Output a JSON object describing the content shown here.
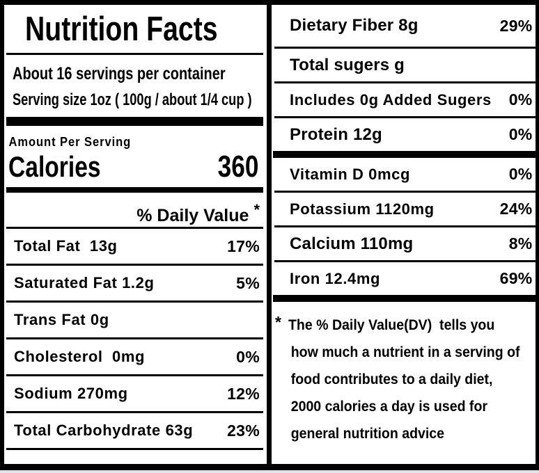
{
  "label": {
    "title": "Nutrition Facts",
    "servings_per_container": "About 16 servings per container",
    "serving_size": "Serving size 1oz ( 100g / about 1/4 cup )",
    "amount_per_serving": "Amount Per Serving",
    "calories_label": "Calories",
    "calories_value": "360",
    "daily_value_header": "% Daily Value",
    "daily_value_asterisk": "*",
    "left_rows": [
      {
        "label": "Total Fat  13g",
        "pct": "17%"
      },
      {
        "label": "Saturated Fat 1.2g",
        "pct": "5%"
      },
      {
        "label": "Trans Fat 0g",
        "pct": ""
      },
      {
        "label": "Cholesterol  0mg",
        "pct": "0%"
      },
      {
        "label": "Sodium 270mg",
        "pct": "12%"
      },
      {
        "label": "Total Carbohydrate 63g",
        "pct": "23%"
      }
    ],
    "right_rows": [
      {
        "label": "Dietary Fiber 8g",
        "pct": "29%"
      },
      {
        "label": "Total sugers g",
        "pct": ""
      },
      {
        "label": "Includes 0g Added Sugers",
        "pct": "0%"
      },
      {
        "label": "Protein 12g",
        "pct": "0%"
      },
      {
        "label": "Vitamin D 0mcg",
        "pct": "0%"
      },
      {
        "label": "Potassium 1120mg",
        "pct": "24%"
      },
      {
        "label": "Calcium 110mg",
        "pct": "8%"
      },
      {
        "label": "Iron 12.4mg",
        "pct": "69%"
      }
    ],
    "footnote": {
      "marker": "*",
      "lines": [
        "The % Daily Value(DV)  tells you",
        "how much a nutrient in a serving of",
        "food contributes to a daily diet,",
        "2000 calories a day is used for",
        "general nutrition advice"
      ]
    }
  }
}
